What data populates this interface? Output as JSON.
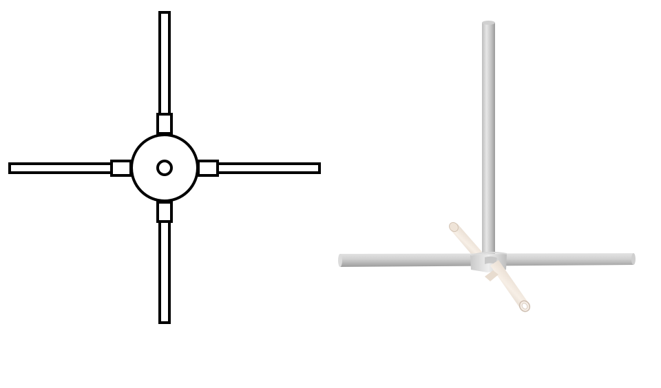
{
  "views": [
    {
      "id": "top-view",
      "style": "2d-line-drawing"
    },
    {
      "id": "perspective-view",
      "style": "3d-render"
    }
  ],
  "colors": {
    "background": "#ffffff",
    "outline": "#000000",
    "fill": "#ffffff",
    "pipe_gray_light": "#d8d8d8",
    "pipe_gray_mid": "#bdbdbd",
    "pipe_gray_dark": "#9a9a9a",
    "pipe_cream_light": "#f7efe6",
    "pipe_cream_mid": "#e6d9cc",
    "pipe_cream_dark": "#cbbcae",
    "hub_light": "#e9e9e9",
    "hub_dark": "#bfbfbf"
  }
}
